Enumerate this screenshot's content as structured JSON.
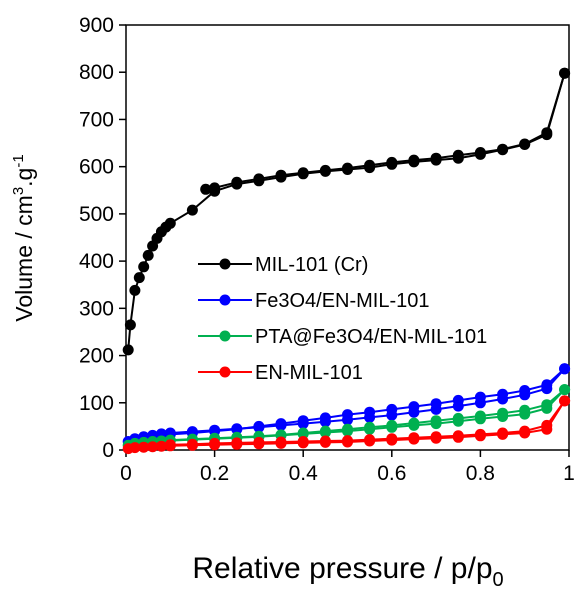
{
  "chart_data": {
    "type": "line",
    "title": "",
    "xlabel": "Relative pressure / p/p",
    "xlabel_sub": "0",
    "ylabel": {
      "part1": "Volume / cm",
      "sup1": "3",
      "part2": ".g",
      "sup2": "-1"
    },
    "xlim": [
      0,
      1
    ],
    "ylim": [
      0,
      900
    ],
    "xticks": [
      0,
      0.2,
      0.4,
      0.6,
      0.8,
      1
    ],
    "xtick_labels": [
      "0",
      "0.2",
      "0.4",
      "0.6",
      "0.8",
      "1"
    ],
    "yticks": [
      0,
      100,
      200,
      300,
      400,
      500,
      600,
      700,
      800,
      900
    ],
    "ytick_labels": [
      "0",
      "100",
      "200",
      "300",
      "400",
      "500",
      "600",
      "700",
      "800",
      "900"
    ],
    "grid": false,
    "legend_placement": "center",
    "series": [
      {
        "name": "MIL-101 (Cr)",
        "color": "#000000",
        "adsorption": [
          [
            0.005,
            212
          ],
          [
            0.01,
            265
          ],
          [
            0.02,
            338
          ],
          [
            0.03,
            365
          ],
          [
            0.04,
            388
          ],
          [
            0.05,
            412
          ],
          [
            0.06,
            432
          ],
          [
            0.07,
            448
          ],
          [
            0.08,
            462
          ],
          [
            0.09,
            472
          ],
          [
            0.1,
            480
          ],
          [
            0.15,
            508
          ],
          [
            0.2,
            548
          ],
          [
            0.25,
            563
          ],
          [
            0.3,
            570
          ],
          [
            0.35,
            578
          ],
          [
            0.4,
            585
          ],
          [
            0.45,
            590
          ],
          [
            0.5,
            594
          ],
          [
            0.55,
            598
          ],
          [
            0.6,
            605
          ],
          [
            0.65,
            610
          ],
          [
            0.7,
            614
          ],
          [
            0.75,
            618
          ],
          [
            0.8,
            626
          ],
          [
            0.85,
            636
          ],
          [
            0.9,
            647
          ],
          [
            0.95,
            668
          ],
          [
            0.99,
            798
          ]
        ],
        "desorption": [
          [
            0.99,
            798
          ],
          [
            0.95,
            672
          ],
          [
            0.9,
            648
          ],
          [
            0.85,
            637
          ],
          [
            0.8,
            630
          ],
          [
            0.75,
            624
          ],
          [
            0.7,
            618
          ],
          [
            0.65,
            614
          ],
          [
            0.6,
            609
          ],
          [
            0.55,
            603
          ],
          [
            0.5,
            597
          ],
          [
            0.45,
            592
          ],
          [
            0.4,
            587
          ],
          [
            0.35,
            582
          ],
          [
            0.3,
            574
          ],
          [
            0.25,
            567
          ],
          [
            0.2,
            555
          ],
          [
            0.18,
            552
          ]
        ]
      },
      {
        "name": "Fe3O4/EN-MIL-101",
        "color": "#0000ff",
        "adsorption": [
          [
            0.005,
            18
          ],
          [
            0.02,
            24
          ],
          [
            0.04,
            28
          ],
          [
            0.06,
            31
          ],
          [
            0.08,
            34
          ],
          [
            0.1,
            36
          ],
          [
            0.15,
            39
          ],
          [
            0.2,
            42
          ],
          [
            0.25,
            45
          ],
          [
            0.3,
            48
          ],
          [
            0.35,
            52
          ],
          [
            0.4,
            56
          ],
          [
            0.45,
            60
          ],
          [
            0.5,
            64
          ],
          [
            0.55,
            69
          ],
          [
            0.6,
            74
          ],
          [
            0.65,
            80
          ],
          [
            0.7,
            86
          ],
          [
            0.75,
            93
          ],
          [
            0.8,
            100
          ],
          [
            0.85,
            108
          ],
          [
            0.9,
            117
          ],
          [
            0.95,
            130
          ],
          [
            0.99,
            172
          ]
        ],
        "desorption": [
          [
            0.99,
            172
          ],
          [
            0.95,
            138
          ],
          [
            0.9,
            126
          ],
          [
            0.85,
            118
          ],
          [
            0.8,
            112
          ],
          [
            0.75,
            105
          ],
          [
            0.7,
            98
          ],
          [
            0.65,
            92
          ],
          [
            0.6,
            86
          ],
          [
            0.55,
            80
          ],
          [
            0.5,
            75
          ],
          [
            0.45,
            68
          ],
          [
            0.4,
            62
          ],
          [
            0.35,
            56
          ],
          [
            0.3,
            50
          ],
          [
            0.25,
            44
          ],
          [
            0.2,
            40
          ],
          [
            0.15,
            36
          ],
          [
            0.1,
            33
          ]
        ]
      },
      {
        "name": "PTA@Fe3O4/EN-MIL-101",
        "color": "#00b050",
        "adsorption": [
          [
            0.005,
            10
          ],
          [
            0.02,
            14
          ],
          [
            0.04,
            16
          ],
          [
            0.06,
            18
          ],
          [
            0.08,
            19
          ],
          [
            0.1,
            20
          ],
          [
            0.15,
            22
          ],
          [
            0.2,
            24
          ],
          [
            0.25,
            26
          ],
          [
            0.3,
            28
          ],
          [
            0.35,
            31
          ],
          [
            0.4,
            34
          ],
          [
            0.45,
            37
          ],
          [
            0.5,
            40
          ],
          [
            0.55,
            44
          ],
          [
            0.6,
            48
          ],
          [
            0.65,
            52
          ],
          [
            0.7,
            56
          ],
          [
            0.75,
            61
          ],
          [
            0.8,
            66
          ],
          [
            0.85,
            71
          ],
          [
            0.9,
            76
          ],
          [
            0.95,
            88
          ],
          [
            0.99,
            128
          ]
        ],
        "desorption": [
          [
            0.99,
            128
          ],
          [
            0.95,
            96
          ],
          [
            0.9,
            84
          ],
          [
            0.85,
            78
          ],
          [
            0.8,
            72
          ],
          [
            0.75,
            67
          ],
          [
            0.7,
            62
          ],
          [
            0.65,
            57
          ],
          [
            0.6,
            52
          ],
          [
            0.55,
            48
          ],
          [
            0.5,
            44
          ],
          [
            0.45,
            40
          ],
          [
            0.4,
            36
          ],
          [
            0.35,
            32
          ],
          [
            0.3,
            29
          ],
          [
            0.25,
            27
          ],
          [
            0.2,
            25
          ],
          [
            0.15,
            23
          ],
          [
            0.1,
            21
          ]
        ]
      },
      {
        "name": "EN-MIL-101",
        "color": "#ff0000",
        "adsorption": [
          [
            0.005,
            3
          ],
          [
            0.02,
            5
          ],
          [
            0.04,
            6
          ],
          [
            0.06,
            7
          ],
          [
            0.08,
            8
          ],
          [
            0.1,
            9
          ],
          [
            0.15,
            10
          ],
          [
            0.2,
            11
          ],
          [
            0.25,
            12
          ],
          [
            0.3,
            13
          ],
          [
            0.35,
            14
          ],
          [
            0.4,
            15
          ],
          [
            0.45,
            16
          ],
          [
            0.5,
            17
          ],
          [
            0.55,
            19
          ],
          [
            0.6,
            21
          ],
          [
            0.65,
            23
          ],
          [
            0.7,
            25
          ],
          [
            0.75,
            27
          ],
          [
            0.8,
            30
          ],
          [
            0.85,
            33
          ],
          [
            0.9,
            36
          ],
          [
            0.95,
            44
          ],
          [
            0.99,
            104
          ]
        ],
        "desorption": [
          [
            0.99,
            104
          ],
          [
            0.95,
            52
          ],
          [
            0.9,
            40
          ],
          [
            0.85,
            36
          ],
          [
            0.8,
            33
          ],
          [
            0.75,
            30
          ],
          [
            0.7,
            28
          ],
          [
            0.65,
            26
          ],
          [
            0.6,
            24
          ],
          [
            0.55,
            22
          ],
          [
            0.5,
            20
          ],
          [
            0.45,
            19
          ],
          [
            0.4,
            18
          ],
          [
            0.35,
            17
          ],
          [
            0.3,
            16
          ],
          [
            0.25,
            15
          ],
          [
            0.2,
            14
          ],
          [
            0.15,
            12
          ],
          [
            0.1,
            11
          ]
        ]
      }
    ]
  }
}
